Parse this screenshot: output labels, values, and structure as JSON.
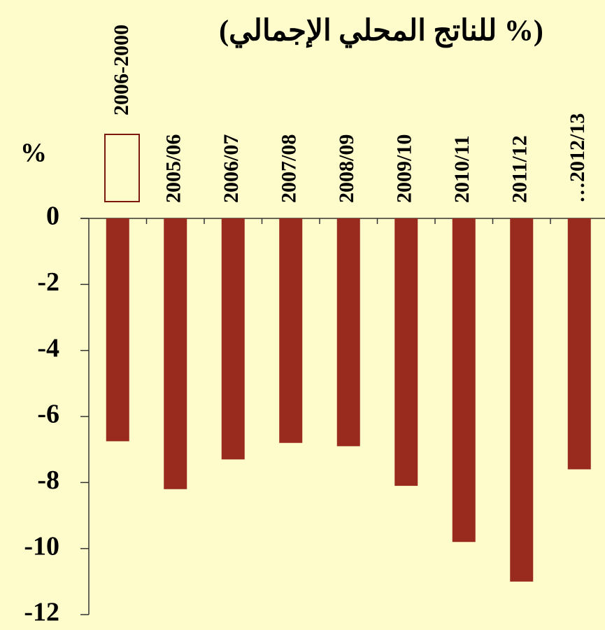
{
  "chart_data": {
    "type": "bar",
    "title": "(% للناتج المحلي الإجمالي)",
    "y_label": "%",
    "categories": [
      "2006-2000",
      "2005/06",
      "2006/07",
      "2007/08",
      "2008/09",
      "2009/10",
      "2010/11",
      "2011/12",
      "…2012/13"
    ],
    "values": [
      -6.75,
      -8.2,
      -7.3,
      -6.8,
      -6.9,
      -8.1,
      -9.8,
      -11.0,
      -7.6
    ],
    "color": "#992a1e",
    "ylim": [
      -12,
      0
    ],
    "yticks": [
      0,
      -2,
      -4,
      -6,
      -8,
      -10,
      -12
    ]
  }
}
